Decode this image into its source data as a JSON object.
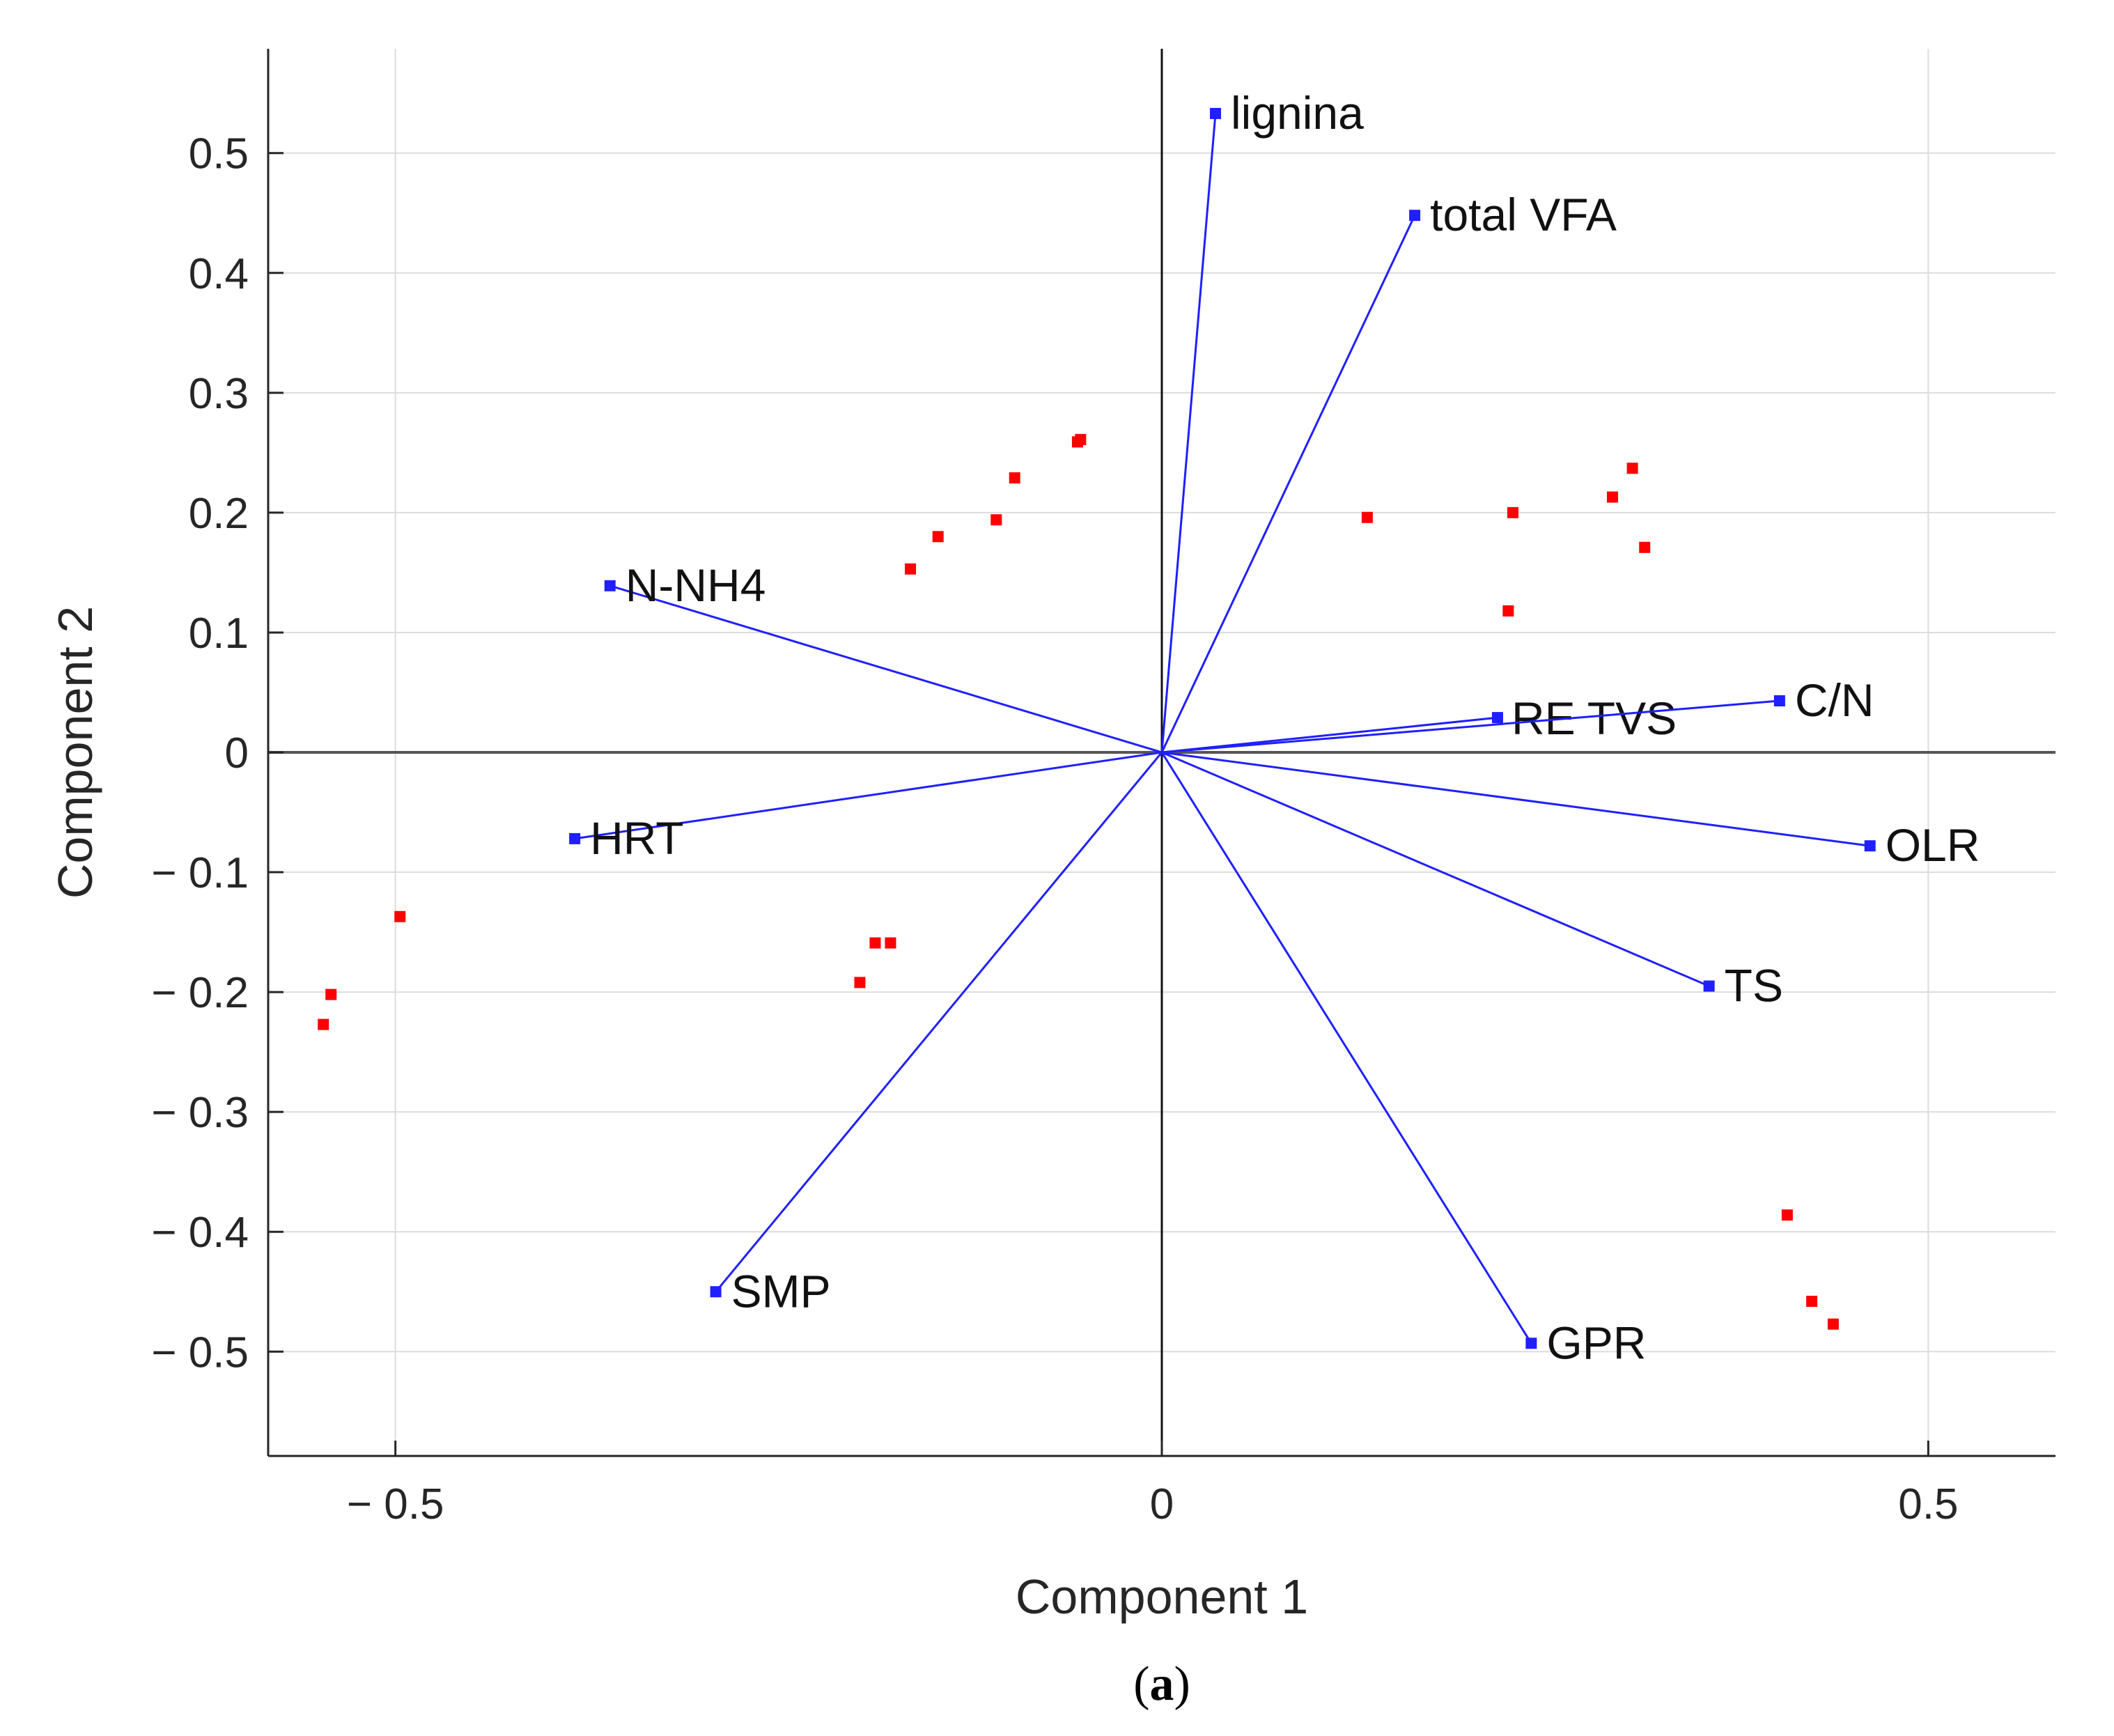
{
  "chart_data": {
    "type": "biplot",
    "xlabel": "Component 1",
    "ylabel": "Component 2",
    "xlim": [
      -0.583,
      0.583
    ],
    "ylim": [
      -0.587,
      0.587
    ],
    "xticks": [
      -0.5,
      0,
      0.5
    ],
    "xtick_labels": [
      "− 0.5",
      "0",
      "0.5"
    ],
    "yticks": [
      0.5,
      0.4,
      0.3,
      0.2,
      0.1,
      0,
      -0.1,
      -0.2,
      -0.3,
      -0.4,
      -0.5
    ],
    "ytick_labels": [
      "0.5",
      "0.4",
      "0.3",
      "0.2",
      "0.1",
      "0",
      "− 0.1",
      "− 0.2",
      "− 0.3",
      "− 0.4",
      "− 0.5"
    ],
    "grid": true,
    "vector_color": "#1f1fff",
    "point_color": "#ff0000",
    "vectors": [
      {
        "name": "lignina",
        "x": 0.035,
        "y": 0.533
      },
      {
        "name": "total VFA",
        "x": 0.165,
        "y": 0.448
      },
      {
        "name": "N-NH4",
        "x": -0.36,
        "y": 0.139
      },
      {
        "name": "RE TVS",
        "x": 0.219,
        "y": 0.029
      },
      {
        "name": "C/N",
        "x": 0.403,
        "y": 0.043
      },
      {
        "name": "HRT",
        "x": -0.383,
        "y": -0.072
      },
      {
        "name": "OLR",
        "x": 0.462,
        "y": -0.078
      },
      {
        "name": "TS",
        "x": 0.357,
        "y": -0.195
      },
      {
        "name": "SMP",
        "x": -0.291,
        "y": -0.45
      },
      {
        "name": "GPR",
        "x": 0.241,
        "y": -0.493
      }
    ],
    "points": [
      {
        "x": -0.055,
        "y": 0.259
      },
      {
        "x": -0.053,
        "y": 0.261
      },
      {
        "x": -0.096,
        "y": 0.229
      },
      {
        "x": -0.108,
        "y": 0.194
      },
      {
        "x": -0.146,
        "y": 0.18
      },
      {
        "x": -0.164,
        "y": 0.153
      },
      {
        "x": 0.134,
        "y": 0.196
      },
      {
        "x": 0.229,
        "y": 0.2
      },
      {
        "x": 0.294,
        "y": 0.213
      },
      {
        "x": 0.307,
        "y": 0.237
      },
      {
        "x": 0.315,
        "y": 0.171
      },
      {
        "x": 0.226,
        "y": 0.118
      },
      {
        "x": -0.497,
        "y": -0.137
      },
      {
        "x": -0.542,
        "y": -0.202
      },
      {
        "x": -0.547,
        "y": -0.227
      },
      {
        "x": -0.187,
        "y": -0.159
      },
      {
        "x": -0.177,
        "y": -0.159
      },
      {
        "x": -0.197,
        "y": -0.192
      },
      {
        "x": 0.408,
        "y": -0.386
      },
      {
        "x": 0.424,
        "y": -0.458
      },
      {
        "x": 0.438,
        "y": -0.477
      }
    ]
  },
  "caption": {
    "open": "(",
    "letter": "a",
    "close": ")"
  }
}
